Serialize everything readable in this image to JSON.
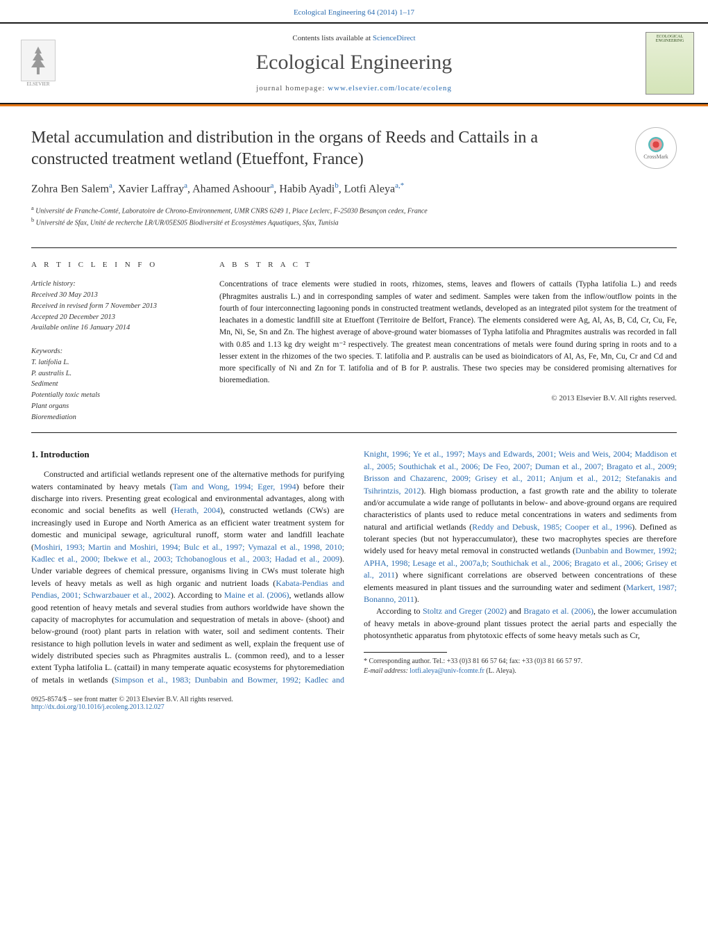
{
  "header": {
    "citation": "Ecological Engineering 64 (2014) 1–17"
  },
  "masthead": {
    "publisher_name": "ELSEVIER",
    "contents_prefix": "Contents lists available at ",
    "contents_link": "ScienceDirect",
    "journal_title": "Ecological Engineering",
    "homepage_prefix": "journal homepage: ",
    "homepage_url": "www.elsevier.com/locate/ecoleng",
    "cover_title": "ECOLOGICAL ENGINEERING"
  },
  "article": {
    "title": "Metal accumulation and distribution in the organs of Reeds and Cattails in a constructed treatment wetland (Etueffont, France)",
    "crossmark_label": "CrossMark",
    "authors_html": "Zohra Ben Salem<sup>a</sup>, Xavier Laffray<sup>a</sup>, Ahamed Ashoour<sup>a</sup>, Habib Ayadi<sup>b</sup>, Lotfi Aleya<sup>a,*</sup>",
    "affiliations": [
      {
        "sup": "a",
        "text": "Université de Franche-Comté, Laboratoire de Chrono-Environnement, UMR CNRS 6249 1, Place Leclerc, F-25030 Besançon cedex, France"
      },
      {
        "sup": "b",
        "text": "Université de Sfax, Unité de recherche LR/UR/05ES05 Biodiversité et Ecosystèmes Aquatiques, Sfax, Tunisia"
      }
    ]
  },
  "info": {
    "label": "a r t i c l e   i n f o",
    "history_label": "Article history:",
    "received": "Received 30 May 2013",
    "revised": "Received in revised form 7 November 2013",
    "accepted": "Accepted 20 December 2013",
    "online": "Available online 16 January 2014",
    "keywords_label": "Keywords:",
    "keywords": [
      "T. latifolia L.",
      "P. australis L.",
      "Sediment",
      "Potentially toxic metals",
      "Plant organs",
      "Bioremediation"
    ]
  },
  "abstract": {
    "label": "a b s t r a c t",
    "text": "Concentrations of trace elements were studied in roots, rhizomes, stems, leaves and flowers of cattails (Typha latifolia L.) and reeds (Phragmites australis L.) and in corresponding samples of water and sediment. Samples were taken from the inflow/outflow points in the fourth of four interconnecting lagooning ponds in constructed treatment wetlands, developed as an integrated pilot system for the treatment of leachates in a domestic landfill site at Etueffont (Territoire de Belfort, France). The elements considered were Ag, Al, As, B, Cd, Cr, Cu, Fe, Mn, Ni, Se, Sn and Zn. The highest average of above-ground water biomasses of Typha latifolia and Phragmites australis was recorded in fall with 0.85 and 1.13 kg dry weight m⁻² respectively. The greatest mean concentrations of metals were found during spring in roots and to a lesser extent in the rhizomes of the two species. T. latifolia and P. australis can be used as bioindicators of Al, As, Fe, Mn, Cu, Cr and Cd and more specifically of Ni and Zn for T. latifolia and of B for P. australis. These two species may be considered promising alternatives for bioremediation.",
    "copyright": "© 2013 Elsevier B.V. All rights reserved."
  },
  "body": {
    "section_heading": "1.  Introduction",
    "p1_a": "Constructed and artificial wetlands represent one of the alternative methods for purifying waters contaminated by heavy metals (",
    "p1_ref1": "Tam and Wong, 1994; Eger, 1994",
    "p1_b": ") before their discharge into rivers. Presenting great ecological and environmental advantages, along with economic and social benefits as well (",
    "p1_ref2": "Herath, 2004",
    "p1_c": "), constructed wetlands (CWs) are increasingly used in Europe and North America as an efficient water treatment system for domestic and municipal sewage, agricultural runoff, storm water and landfill leachate (",
    "p1_ref3": "Moshiri, 1993; Martin and Moshiri, 1994; Bulc et al., 1997; Vymazal et al., 1998, 2010; Kadlec et al., 2000; Ibekwe et al., 2003; Tchobanoglous et al., 2003; Hadad et al., 2009",
    "p1_d": "). Under variable degrees of chemical pressure, organisms living in CWs must tolerate high levels of heavy metals as well as high organic and nutrient loads (",
    "p1_ref4": "Kabata-Pendias and Pendias, 2001; Schwarzbauer et al., 2002",
    "p1_e": "). According to ",
    "p1_ref5": "Maine et al. (2006)",
    "p1_f": ", wetlands allow good retention of heavy metals and several studies from authors worldwide have shown the capacity of macrophytes for accumulation and sequestration of metals in above- (shoot) and below-ground (root) plant parts in relation with water, soil and sediment contents. Their resistance to high pollution levels in water and sediment as well, explain the frequent use of widely distributed species such as Phragmites australis L. (common reed), and to a lesser extent Typha latifolia L. (cattail) in many temperate aquatic ecosystems for phytoremediation of metals in wetlands (",
    "p1_ref6": "Simpson et al., 1983; Dunbabin and Bowmer, 1992; Kadlec and Knight, 1996; Ye et al., 1997; Mays and Edwards, 2001; Weis and Weis, 2004; Maddison et al., 2005; Southichak et al., 2006; De Feo, 2007; Duman et al., 2007; Bragato et al., 2009; Brisson and Chazarenc, 2009; Grisey et al., 2011; Anjum et al., 2012; Stefanakis and Tsihrintzis, 2012",
    "p1_g": "). High biomass production, a fast growth rate and the ability to tolerate and/or accumulate a wide range of pollutants in below- and above-ground organs are required characteristics of plants used to reduce metal concentrations in waters and sediments from natural and artificial wetlands (",
    "p1_ref7": "Reddy and Debusk, 1985; Cooper et al., 1996",
    "p1_h": "). Defined as tolerant species (but not hyperaccumulator), these two macrophytes species are therefore widely used for heavy metal removal in constructed wetlands (",
    "p1_ref8": "Dunbabin and Bowmer, 1992; APHA, 1998; Lesage et al., 2007a,b; Southichak et al., 2006; Bragato et al., 2006; Grisey et al., 2011",
    "p1_i": ") where significant correlations are observed between concentrations of these elements measured in plant tissues and the surrounding water and sediment (",
    "p1_ref9": "Markert, 1987; Bonanno, 2011",
    "p1_j": ").",
    "p2_a": "According to ",
    "p2_ref1": "Stoltz and Greger (2002)",
    "p2_b": " and ",
    "p2_ref2": "Bragato et al. (2006)",
    "p2_c": ", the lower accumulation of heavy metals in above-ground plant tissues protect the aerial parts and especially the photosynthetic apparatus from phytotoxic effects of some heavy metals such as Cr,"
  },
  "footnote": {
    "corr": "* Corresponding author. Tel.: +33 (0)3 81 66 57 64; fax: +33 (0)3 81 66 57 97.",
    "email_label": "E-mail address: ",
    "email": "lotfi.aleya@univ-fcomte.fr",
    "email_suffix": " (L. Aleya)."
  },
  "footer": {
    "issn_line": "0925-8574/$ – see front matter © 2013 Elsevier B.V. All rights reserved.",
    "doi": "http://dx.doi.org/10.1016/j.ecoleng.2013.12.027"
  },
  "colors": {
    "accent_orange": "#e67817",
    "link_blue": "#2b6cb0",
    "text": "#1a1a1a"
  }
}
